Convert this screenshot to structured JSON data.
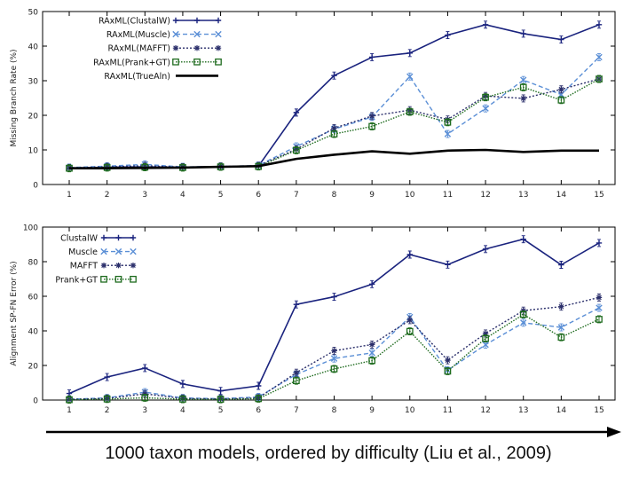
{
  "caption": "1000 taxon models, ordered by difficulty (Liu et al., 2009)",
  "chart_data": [
    {
      "type": "line",
      "ylabel": "Missing Branch Rate (%)",
      "xlabel": "",
      "ylim": [
        0,
        50
      ],
      "yticks": [
        0,
        10,
        20,
        30,
        40,
        50
      ],
      "categories": [
        "1",
        "2",
        "3",
        "4",
        "5",
        "6",
        "7",
        "8",
        "9",
        "10",
        "11",
        "12",
        "13",
        "14",
        "15"
      ],
      "series": [
        {
          "name": "RAxML(ClustalW)",
          "color": "#1a237e",
          "dash": "",
          "marker": "plus",
          "width": 1.6,
          "values": [
            4.8,
            5.0,
            5.1,
            5.0,
            5.2,
            5.3,
            20.8,
            31.5,
            36.8,
            38.0,
            43.2,
            46.2,
            43.6,
            41.9,
            46.2
          ]
        },
        {
          "name": "RAxML(Muscle)",
          "color": "#5b8fd6",
          "dash": "5,3",
          "marker": "x",
          "width": 1.4,
          "values": [
            4.9,
            5.3,
            5.8,
            5.1,
            5.2,
            5.5,
            11.0,
            16.0,
            19.5,
            31.2,
            14.6,
            22.0,
            30.2,
            26.0,
            36.8
          ]
        },
        {
          "name": "RAxML(MAFFT)",
          "color": "#2b2f6b",
          "dash": "2,2",
          "marker": "star",
          "width": 1.4,
          "values": [
            4.8,
            5.1,
            5.4,
            5.0,
            5.2,
            5.4,
            10.2,
            16.3,
            19.8,
            21.5,
            18.8,
            25.6,
            24.9,
            27.5,
            30.5
          ]
        },
        {
          "name": "RAxML(Prank+GT)",
          "color": "#1e6b1e",
          "dash": "1.5,1.5",
          "marker": "square",
          "width": 1.4,
          "values": [
            4.7,
            4.9,
            5.0,
            4.9,
            5.1,
            5.2,
            9.9,
            14.6,
            16.8,
            21.0,
            18.0,
            25.2,
            28.1,
            24.4,
            30.5
          ]
        },
        {
          "name": "RAxML(TrueAln)",
          "color": "#000000",
          "dash": "",
          "marker": "none",
          "width": 2.6,
          "values": [
            4.7,
            4.7,
            4.8,
            4.9,
            5.1,
            5.3,
            7.4,
            8.6,
            9.6,
            8.9,
            9.8,
            10.0,
            9.4,
            9.8,
            9.8
          ]
        }
      ]
    },
    {
      "type": "line",
      "ylabel": "Alignment SP-FN Error (%)",
      "xlabel": "",
      "ylim": [
        0,
        100
      ],
      "yticks": [
        0,
        20,
        40,
        60,
        80,
        100
      ],
      "categories": [
        "1",
        "2",
        "3",
        "4",
        "5",
        "6",
        "7",
        "8",
        "9",
        "10",
        "11",
        "12",
        "13",
        "14",
        "15"
      ],
      "series": [
        {
          "name": "ClustalW",
          "color": "#1a237e",
          "dash": "",
          "marker": "plus",
          "width": 1.6,
          "values": [
            3.8,
            13.3,
            18.5,
            9.3,
            5.3,
            8.2,
            55.3,
            59.7,
            67.0,
            84.1,
            78.3,
            87.3,
            93.0,
            78.2,
            90.8
          ]
        },
        {
          "name": "Muscle",
          "color": "#5b8fd6",
          "dash": "5,3",
          "marker": "x",
          "width": 1.4,
          "values": [
            0.5,
            1.2,
            4.6,
            1.2,
            0.8,
            1.8,
            14.8,
            24.0,
            27.3,
            48.0,
            17.2,
            32.0,
            44.7,
            42.0,
            53.3
          ]
        },
        {
          "name": "MAFFT",
          "color": "#2b2f6b",
          "dash": "2,2",
          "marker": "star",
          "width": 1.4,
          "values": [
            0.4,
            0.9,
            3.6,
            0.9,
            0.6,
            1.2,
            15.8,
            28.5,
            32.1,
            46.2,
            23.0,
            38.5,
            51.7,
            54.0,
            59.3
          ]
        },
        {
          "name": "Prank+GT",
          "color": "#1e6b1e",
          "dash": "1.5,1.5",
          "marker": "square",
          "width": 1.4,
          "values": [
            0.2,
            0.6,
            1.3,
            0.5,
            0.4,
            0.8,
            11.2,
            18.0,
            22.8,
            39.7,
            16.7,
            35.6,
            49.5,
            36.3,
            46.7
          ]
        }
      ]
    }
  ]
}
